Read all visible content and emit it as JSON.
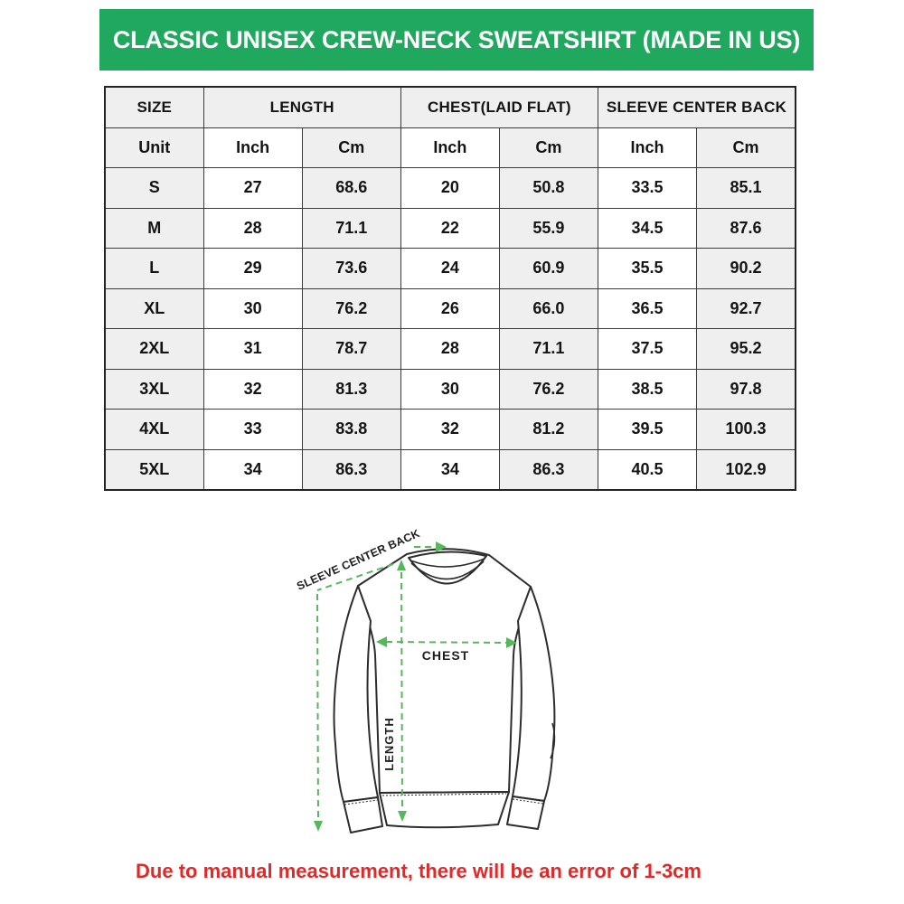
{
  "header": {
    "title": "CLASSIC UNISEX CREW-NECK SWEATSHIRT (MADE IN US)"
  },
  "table": {
    "col_groups": [
      "SIZE",
      "LENGTH",
      "CHEST(LAID FLAT)",
      "SLEEVE CENTER BACK"
    ],
    "unit_row": [
      "Unit",
      "Inch",
      "Cm",
      "Inch",
      "Cm",
      "Inch",
      "Cm"
    ],
    "rows": [
      {
        "size": "S",
        "values": [
          "27",
          "68.6",
          "20",
          "50.8",
          "33.5",
          "85.1"
        ]
      },
      {
        "size": "M",
        "values": [
          "28",
          "71.1",
          "22",
          "55.9",
          "34.5",
          "87.6"
        ]
      },
      {
        "size": "L",
        "values": [
          "29",
          "73.6",
          "24",
          "60.9",
          "35.5",
          "90.2"
        ]
      },
      {
        "size": "XL",
        "values": [
          "30",
          "76.2",
          "26",
          "66.0",
          "36.5",
          "92.7"
        ]
      },
      {
        "size": "2XL",
        "values": [
          "31",
          "78.7",
          "28",
          "71.1",
          "37.5",
          "95.2"
        ]
      },
      {
        "size": "3XL",
        "values": [
          "32",
          "81.3",
          "30",
          "76.2",
          "38.5",
          "97.8"
        ]
      },
      {
        "size": "4XL",
        "values": [
          "33",
          "83.8",
          "32",
          "81.2",
          "39.5",
          "100.3"
        ]
      },
      {
        "size": "5XL",
        "values": [
          "34",
          "86.3",
          "34",
          "86.3",
          "40.5",
          "102.9"
        ]
      }
    ]
  },
  "diagram": {
    "labels": {
      "sleeve_center_back": "SLEEVE CENTER BACK",
      "chest": "CHEST",
      "length": "LENGTH"
    }
  },
  "footer": {
    "note": "Due to manual measurement, there will be an error of 1-3cm"
  },
  "colors": {
    "banner_green": "#1fa85e",
    "dash_green": "#57b75c",
    "error_red": "#e02929",
    "cell_gray": "#efefef",
    "border_dark": "#3a3a3a",
    "outline": "#2d2d2d"
  }
}
